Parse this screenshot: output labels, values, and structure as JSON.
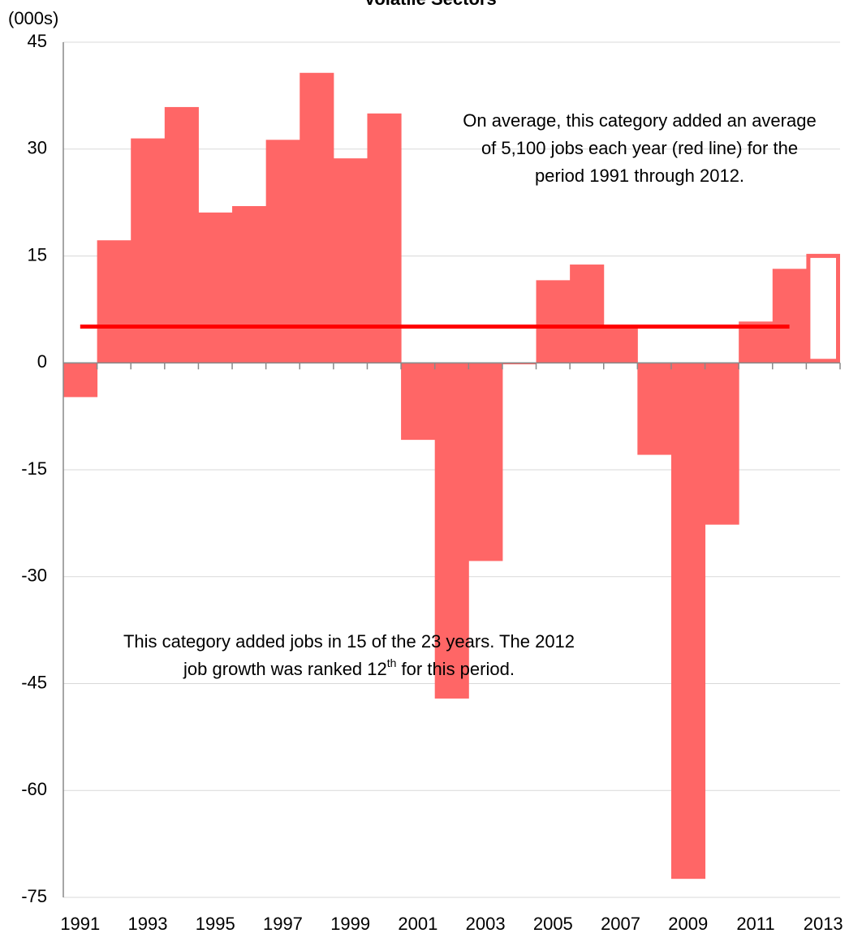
{
  "chart_data": {
    "type": "bar",
    "title": "Volatile Sectors",
    "y_unit": "(000s)",
    "categories": [
      "1991",
      null,
      "1993",
      null,
      "1995",
      null,
      "1997",
      null,
      "1999",
      null,
      "2001",
      null,
      "2003",
      null,
      "2005",
      null,
      "2007",
      null,
      "2009",
      null,
      "2011",
      null,
      "2013"
    ],
    "values": [
      -4.8,
      17.2,
      31.5,
      35.9,
      21.1,
      22.0,
      31.3,
      40.7,
      28.7,
      35.0,
      -10.8,
      -47.1,
      -27.8,
      -0.2,
      11.6,
      13.8,
      5.1,
      -12.9,
      -72.4,
      -22.7,
      5.8,
      13.2,
      15.3
    ],
    "color": "#ff6666",
    "last_bar_outlined": true,
    "average": 5.1,
    "average_color": "#ff0000",
    "ylim": [
      -75,
      45
    ],
    "yticks": [
      -75,
      -60,
      -45,
      -30,
      -15,
      0,
      15,
      30,
      45
    ],
    "grid": true,
    "annotations": [
      {
        "lines": [
          [
            "On average, this category added an average"
          ],
          [
            "of 5,100 jobs each year (red line) for the"
          ],
          [
            "period 1991 through 2012."
          ]
        ]
      },
      {
        "lines": [
          [
            "This category added jobs in 15 of the 23 years. The 2012"
          ],
          [
            "job growth was ranked 12",
            "th",
            " for this period."
          ]
        ]
      }
    ]
  }
}
